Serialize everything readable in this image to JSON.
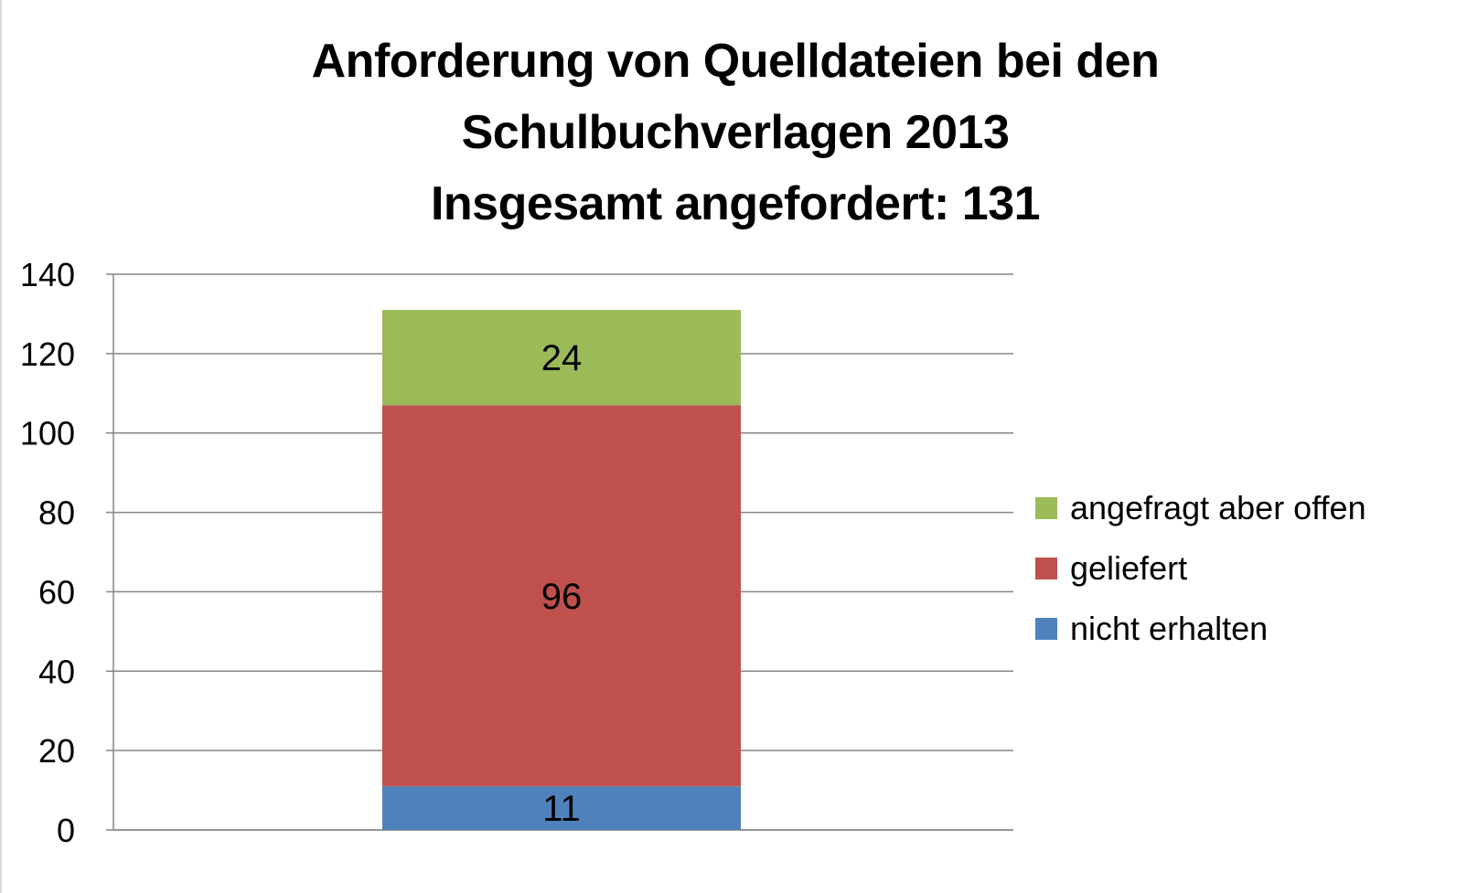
{
  "chart_data": {
    "type": "bar",
    "stacked": true,
    "title": "Anforderung von Quelldateien bei den Schulbuchverlagen 2013 Insgesamt angefordert: 131",
    "title_lines": [
      "Anforderung von Quelldateien bei den",
      "Schulbuchverlagen 2013",
      "Insgesamt angefordert: 131"
    ],
    "xlabel": "",
    "ylabel": "",
    "categories": [
      ""
    ],
    "ylim": [
      0,
      140
    ],
    "yticks": [
      0,
      20,
      40,
      60,
      80,
      100,
      120,
      140
    ],
    "grid": true,
    "legend_position": "right",
    "series": [
      {
        "name": "nicht erhalten",
        "values": [
          11
        ],
        "color": "#4f81bd"
      },
      {
        "name": "geliefert",
        "values": [
          96
        ],
        "color": "#c0504d"
      },
      {
        "name": "angefragt aber offen",
        "values": [
          24
        ],
        "color": "#9bbb59"
      }
    ]
  }
}
